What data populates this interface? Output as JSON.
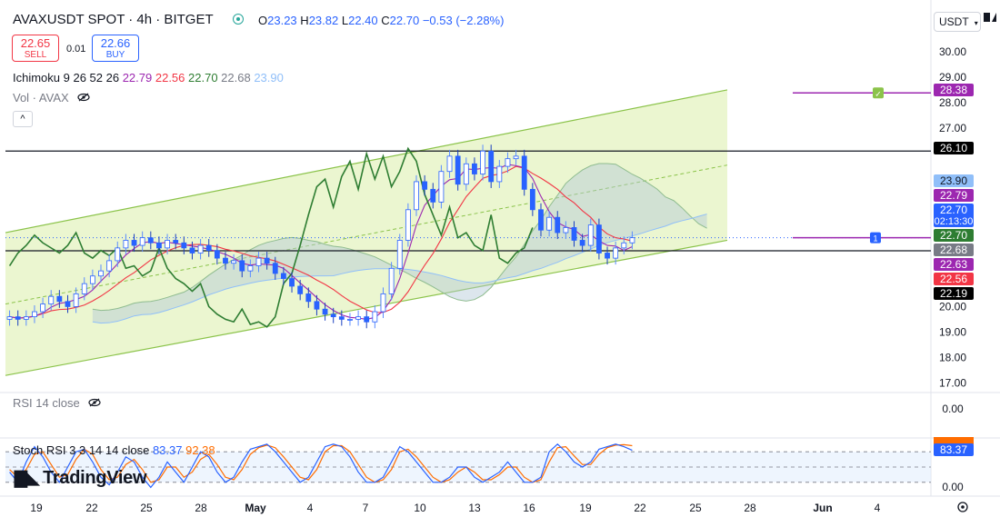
{
  "header": {
    "title": "AVAXUSDT SPOT · 4h · BITGET",
    "ohlc": {
      "o_label": "O",
      "o": "23.23",
      "h_label": "H",
      "h": "23.82",
      "l_label": "L",
      "l": "22.40",
      "c_label": "C",
      "c": "22.70",
      "change": "−0.53 (−2.28%)"
    },
    "currency": "USDT"
  },
  "trade": {
    "sell_price": "22.65",
    "sell_label": "SELL",
    "spread": "0.01",
    "buy_price": "22.66",
    "buy_label": "BUY"
  },
  "indicators": {
    "ichimoku_name": "Ichimoku 9 26 52 26",
    "ichimoku_values": [
      {
        "value": "22.79",
        "color": "#9c27b0"
      },
      {
        "value": "22.56",
        "color": "#f23645"
      },
      {
        "value": "22.70",
        "color": "#2e7d32"
      },
      {
        "value": "22.68",
        "color": "#787b86"
      },
      {
        "value": "23.90",
        "color": "#90bff9"
      }
    ],
    "vol_label": "Vol · AVAX",
    "rsi_label": "RSI 14 close",
    "stoch_name": "Stoch RSI 3 3 14 14 close",
    "stoch_k": "83.37",
    "stoch_d": "92.38"
  },
  "brand": "TradingView",
  "colors": {
    "up": "#2962ff",
    "down": "#2962ff",
    "channel_fill": "#e8f5c8",
    "channel_line": "#8bc34a",
    "tenkan": "#9c27b0",
    "kijun": "#f23645",
    "chikou": "#2e7d32",
    "stoch_k": "#2962ff",
    "stoch_d": "#ff6d00"
  },
  "chart_data": {
    "type": "candlestick",
    "y_axis_ticks": [
      "30.00",
      "29.00",
      "28.00",
      "27.00",
      "26.10",
      "20.00",
      "19.00",
      "18.00",
      "17.00"
    ],
    "ylim": [
      16.7,
      30.6
    ],
    "x_axis_ticks": [
      "19",
      "22",
      "25",
      "28",
      "May",
      "4",
      "7",
      "10",
      "13",
      "16",
      "19",
      "22",
      "25",
      "28",
      "Jun",
      "4"
    ],
    "price_labels": [
      {
        "value": "28.38",
        "bg": "#9c27b0"
      },
      {
        "value": "26.10",
        "bg": "#000000"
      },
      {
        "value": "23.90",
        "bg": "#90bff9",
        "fg": "#131722"
      },
      {
        "value": "22.79",
        "bg": "#9c27b0"
      },
      {
        "value": "22.70",
        "sub": "02:13:30",
        "bg": "#2962ff"
      },
      {
        "value": "22.70",
        "bg": "#2e7d32"
      },
      {
        "value": "22.68",
        "bg": "#787b86"
      },
      {
        "value": "22.63",
        "bg": "#9c27b0"
      },
      {
        "value": "22.56",
        "bg": "#f23645"
      },
      {
        "value": "22.19",
        "bg": "#000000"
      }
    ],
    "horizontal_levels": [
      26.1,
      22.19
    ],
    "alert_levels": [
      {
        "value": 28.38,
        "marker": "✓"
      },
      {
        "value": 22.7,
        "marker": "1"
      }
    ],
    "channel": {
      "upper": [
        {
          "x": 0,
          "y": 22.9
        },
        {
          "x": 1,
          "y": 28.5
        }
      ],
      "lower": [
        {
          "x": 0,
          "y": 17.3
        },
        {
          "x": 1,
          "y": 22.6
        }
      ]
    },
    "close": [
      19.6,
      19.5,
      19.6,
      19.8,
      20.1,
      20.4,
      20.2,
      20.0,
      20.5,
      20.9,
      21.2,
      21.4,
      21.8,
      22.3,
      22.6,
      22.4,
      22.7,
      22.5,
      22.3,
      22.6,
      22.5,
      22.3,
      22.1,
      22.4,
      22.2,
      21.9,
      21.7,
      21.8,
      21.4,
      21.6,
      21.9,
      21.7,
      21.3,
      21.1,
      20.8,
      20.5,
      20.2,
      19.9,
      19.7,
      19.6,
      19.5,
      19.5,
      19.6,
      19.4,
      19.8,
      20.5,
      21.5,
      22.6,
      23.8,
      24.9,
      24.6,
      24.1,
      25.3,
      25.9,
      24.8,
      25.6,
      25.2,
      26.1,
      24.9,
      25.5,
      25.8,
      25.9,
      24.6,
      23.8,
      23.0,
      23.5,
      22.9,
      23.1,
      22.6,
      22.4,
      23.2,
      22.1,
      21.9,
      22.3,
      22.5,
      22.7
    ],
    "stoch_k": [
      40,
      20,
      60,
      90,
      70,
      40,
      20,
      50,
      80,
      85,
      60,
      30,
      15,
      40,
      70,
      60,
      30,
      10,
      30,
      60,
      40,
      20,
      50,
      80,
      70,
      40,
      20,
      30,
      60,
      85,
      90,
      95,
      80,
      60,
      40,
      20,
      30,
      60,
      90,
      95,
      90,
      70,
      40,
      20,
      20,
      30,
      60,
      90,
      80,
      60,
      40,
      20,
      20,
      30,
      50,
      50,
      30,
      20,
      30,
      40,
      60,
      40,
      20,
      20,
      30,
      80,
      95,
      80,
      60,
      50,
      60,
      85,
      90,
      95,
      90,
      83
    ],
    "stoch_d": [
      45,
      30,
      45,
      75,
      80,
      55,
      30,
      35,
      65,
      85,
      75,
      45,
      25,
      30,
      55,
      65,
      45,
      20,
      25,
      50,
      50,
      30,
      40,
      65,
      75,
      55,
      30,
      25,
      45,
      75,
      88,
      93,
      88,
      70,
      50,
      30,
      25,
      45,
      80,
      92,
      92,
      80,
      55,
      30,
      20,
      25,
      45,
      80,
      85,
      70,
      50,
      30,
      20,
      25,
      40,
      50,
      40,
      25,
      25,
      35,
      50,
      50,
      30,
      20,
      25,
      60,
      88,
      90,
      72,
      55,
      55,
      75,
      88,
      93,
      94,
      92
    ]
  }
}
